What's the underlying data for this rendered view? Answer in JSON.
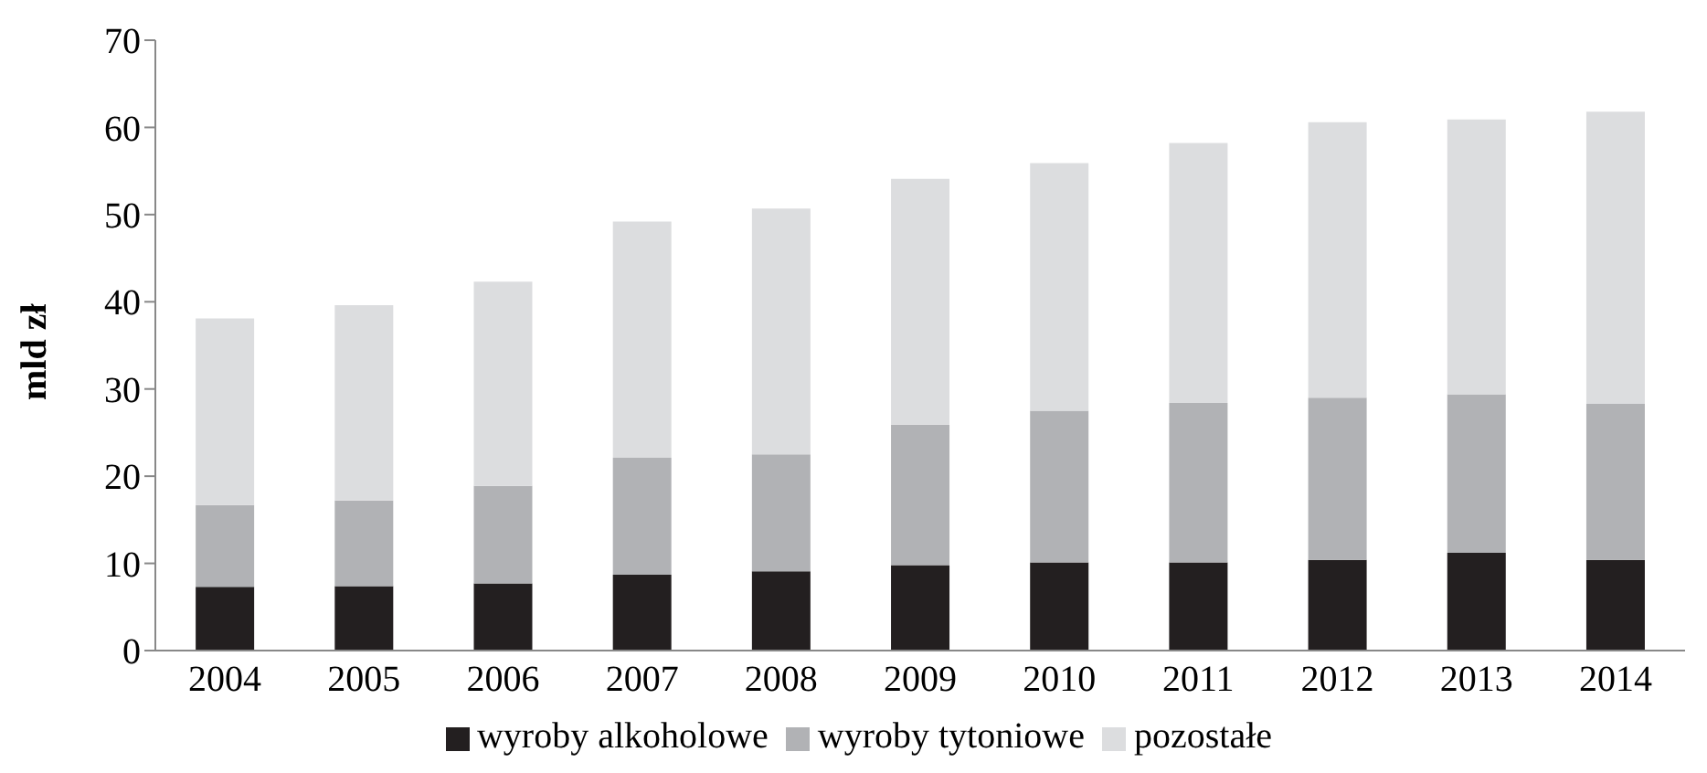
{
  "chart_data": {
    "type": "bar",
    "stacked": true,
    "ylabel": "mld zł",
    "categories": [
      "2004",
      "2005",
      "2006",
      "2007",
      "2008",
      "2009",
      "2010",
      "2011",
      "2012",
      "2013",
      "2014"
    ],
    "series": [
      {
        "name": "wyroby alkoholowe",
        "color": "#231f20",
        "values": [
          7.3,
          7.4,
          7.7,
          8.7,
          9.1,
          9.8,
          10.1,
          10.1,
          10.4,
          11.2,
          10.4
        ]
      },
      {
        "name": "wyroby tytoniowe",
        "color": "#b1b2b5",
        "values": [
          9.4,
          9.8,
          11.2,
          13.4,
          13.4,
          16.1,
          17.4,
          18.3,
          18.6,
          18.2,
          17.9
        ]
      },
      {
        "name": "pozostałe",
        "color": "#dcdddf",
        "values": [
          21.4,
          22.4,
          23.4,
          27.1,
          28.2,
          28.2,
          28.4,
          29.8,
          31.6,
          31.5,
          33.5
        ]
      }
    ],
    "ylim": [
      0,
      70
    ],
    "yticks": [
      0,
      10,
      20,
      30,
      40,
      50,
      60,
      70
    ],
    "grid": false,
    "legend": "bottom"
  }
}
